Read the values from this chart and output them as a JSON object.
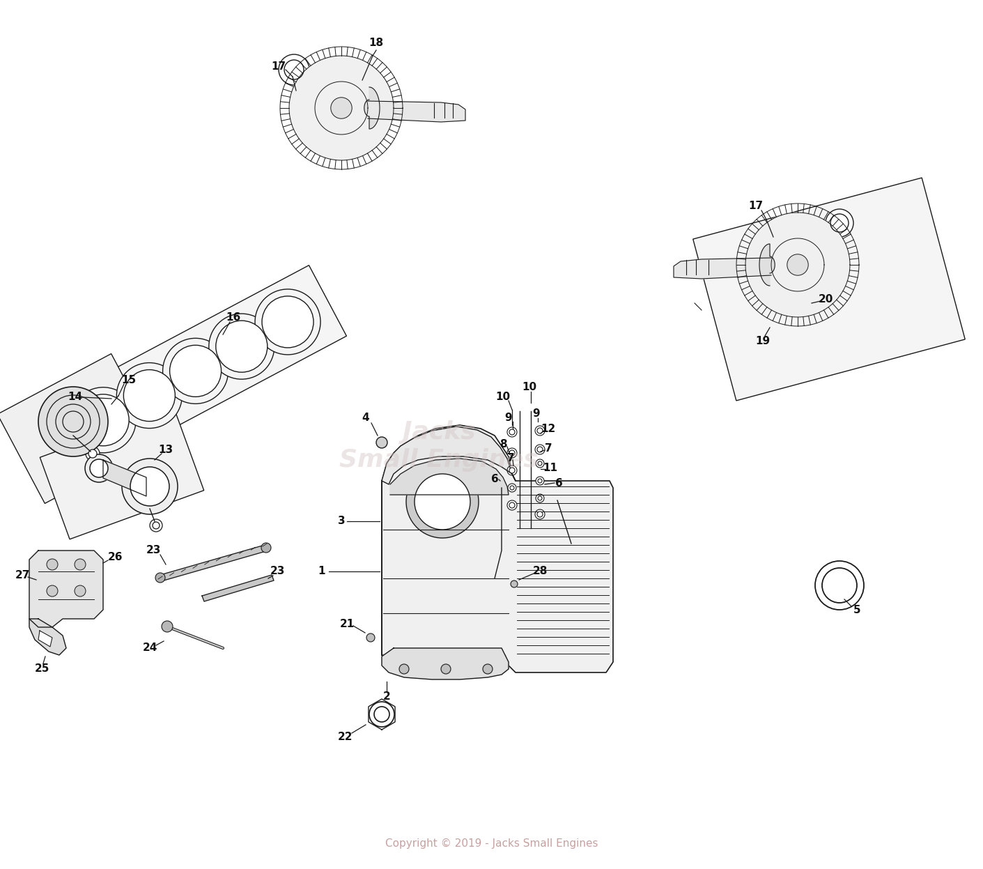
{
  "bg_color": "#ffffff",
  "copyright_text": "Copyright © 2019 - Jacks Small Engines",
  "copyright_color": "#c8a0a0",
  "watermark_line1": "Jacks",
  "watermark_line2": "Small Engines",
  "watermark_color": "#d0c0c0",
  "fig_width": 14.11,
  "fig_height": 12.47,
  "line_color": "#1a1a1a",
  "label_fontsize": 11,
  "label_color": "#111111"
}
